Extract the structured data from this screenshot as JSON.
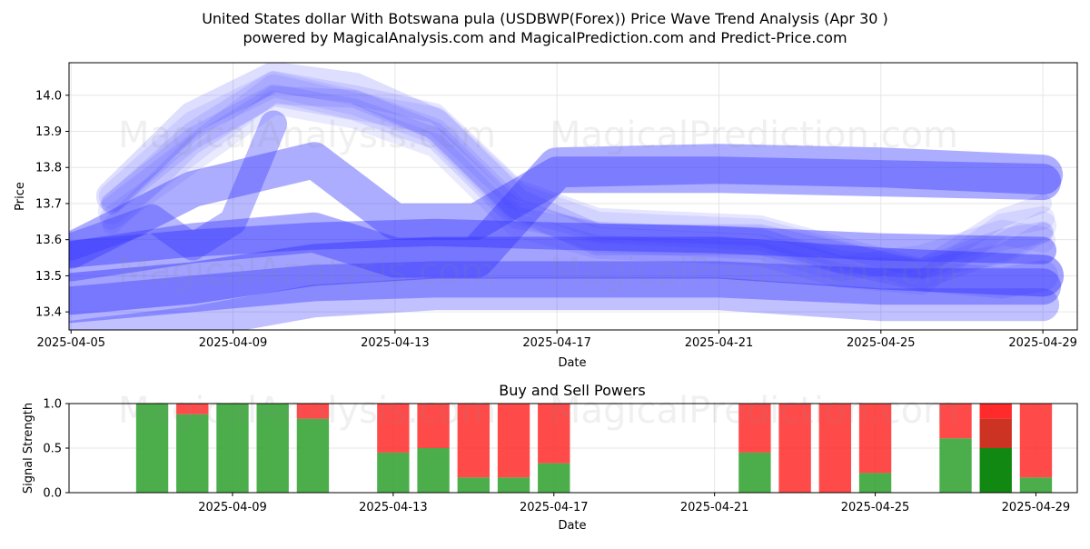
{
  "title_line1": "United States dollar With Botswana pula (USDBWP(Forex)) Price Wave Trend Analysis (Apr 30 )",
  "title_line2": "powered by MagicalAnalysis.com and MagicalPrediction.com and Predict-Price.com",
  "watermarks": [
    "MagicalAnalysis.com",
    "MagicalPrediction.com"
  ],
  "colors": {
    "wave": "#3333ff",
    "buy": "#2ca02c",
    "sell": "#ff2a2a",
    "buy_strong": "#118811",
    "sell_strong": "#cc3322"
  },
  "chart_data": [
    {
      "type": "line",
      "title": "",
      "xlabel": "Date",
      "ylabel": "Price",
      "x_ticks": [
        "2025-04-05",
        "2025-04-09",
        "2025-04-13",
        "2025-04-17",
        "2025-04-21",
        "2025-04-25",
        "2025-04-29"
      ],
      "y_ticks": [
        13.4,
        13.5,
        13.6,
        13.7,
        13.8,
        13.9,
        14.0
      ],
      "xlim": [
        "2025-04-05",
        "2025-04-30"
      ],
      "ylim": [
        13.35,
        14.09
      ],
      "grid": true,
      "series": [
        {
          "points": [
            [
              "2025-04-06",
              13.72
            ],
            [
              "2025-04-08",
              13.92
            ],
            [
              "2025-04-10",
              14.03
            ],
            [
              "2025-04-12",
              13.98
            ],
            [
              "2025-04-14",
              13.9
            ],
            [
              "2025-04-16",
              13.68
            ],
            [
              "2025-04-18",
              13.6
            ],
            [
              "2025-04-22",
              13.58
            ],
            [
              "2025-04-24",
              13.52
            ],
            [
              "2025-04-26",
              13.55
            ],
            [
              "2025-04-28",
              13.62
            ],
            [
              "2025-04-29",
              13.6
            ]
          ]
        },
        {
          "points": [
            [
              "2025-04-06",
              13.7
            ],
            [
              "2025-04-08",
              13.88
            ],
            [
              "2025-04-10",
              14.0
            ],
            [
              "2025-04-12",
              13.96
            ],
            [
              "2025-04-14",
              13.88
            ],
            [
              "2025-04-16",
              13.66
            ],
            [
              "2025-04-18",
              13.62
            ],
            [
              "2025-04-22",
              13.6
            ],
            [
              "2025-04-24",
              13.54
            ],
            [
              "2025-04-26",
              13.52
            ],
            [
              "2025-04-28",
              13.6
            ],
            [
              "2025-04-29",
              13.62
            ]
          ]
        },
        {
          "points": [
            [
              "2025-04-06",
              13.68
            ],
            [
              "2025-04-08",
              13.85
            ],
            [
              "2025-04-10",
              14.02
            ],
            [
              "2025-04-12",
              13.97
            ],
            [
              "2025-04-14",
              13.93
            ],
            [
              "2025-04-16",
              13.72
            ],
            [
              "2025-04-18",
              13.64
            ],
            [
              "2025-04-22",
              13.62
            ],
            [
              "2025-04-24",
              13.56
            ],
            [
              "2025-04-26",
              13.5
            ],
            [
              "2025-04-28",
              13.58
            ],
            [
              "2025-04-29",
              13.64
            ]
          ]
        },
        {
          "points": [
            [
              "2025-04-06",
              13.7
            ],
            [
              "2025-04-08",
              13.9
            ],
            [
              "2025-04-10",
              14.04
            ],
            [
              "2025-04-12",
              14.0
            ],
            [
              "2025-04-14",
              13.95
            ],
            [
              "2025-04-16",
              13.74
            ],
            [
              "2025-04-18",
              13.66
            ],
            [
              "2025-04-22",
              13.64
            ],
            [
              "2025-04-24",
              13.58
            ],
            [
              "2025-04-26",
              13.52
            ],
            [
              "2025-04-28",
              13.56
            ],
            [
              "2025-04-29",
              13.62
            ]
          ]
        },
        {
          "points": [
            [
              "2025-04-06",
              13.66
            ],
            [
              "2025-04-08",
              13.82
            ],
            [
              "2025-04-10",
              13.98
            ],
            [
              "2025-04-12",
              13.94
            ],
            [
              "2025-04-14",
              13.86
            ],
            [
              "2025-04-16",
              13.64
            ],
            [
              "2025-04-18",
              13.58
            ],
            [
              "2025-04-22",
              13.56
            ],
            [
              "2025-04-24",
              13.5
            ],
            [
              "2025-04-26",
              13.48
            ],
            [
              "2025-04-28",
              13.64
            ],
            [
              "2025-04-29",
              13.66
            ]
          ]
        },
        {
          "points": [
            [
              "2025-04-06",
              13.72
            ],
            [
              "2025-04-08",
              13.94
            ],
            [
              "2025-04-10",
              14.05
            ],
            [
              "2025-04-12",
              14.02
            ],
            [
              "2025-04-14",
              13.92
            ],
            [
              "2025-04-16",
              13.7
            ],
            [
              "2025-04-18",
              13.6
            ],
            [
              "2025-04-22",
              13.6
            ],
            [
              "2025-04-24",
              13.55
            ],
            [
              "2025-04-26",
              13.5
            ],
            [
              "2025-04-28",
              13.48
            ],
            [
              "2025-04-29",
              13.5
            ]
          ]
        },
        {
          "points": [
            [
              "2025-04-06",
              13.64
            ],
            [
              "2025-04-08",
              13.86
            ],
            [
              "2025-04-10",
              14.0
            ],
            [
              "2025-04-12",
              13.99
            ],
            [
              "2025-04-14",
              13.9
            ],
            [
              "2025-04-16",
              13.68
            ],
            [
              "2025-04-18",
              13.62
            ],
            [
              "2025-04-22",
              13.61
            ],
            [
              "2025-04-24",
              13.53
            ],
            [
              "2025-04-26",
              13.52
            ],
            [
              "2025-04-28",
              13.66
            ],
            [
              "2025-04-29",
              13.7
            ]
          ]
        },
        {
          "points": [
            [
              "2025-04-05",
              13.58
            ],
            [
              "2025-04-06",
              13.62
            ],
            [
              "2025-04-07",
              13.66
            ],
            [
              "2025-04-08",
              13.58
            ],
            [
              "2025-04-09",
              13.65
            ],
            [
              "2025-04-10",
              13.92
            ]
          ]
        },
        {
          "points": [
            [
              "2025-04-05",
              13.57
            ],
            [
              "2025-04-08",
              13.74
            ],
            [
              "2025-04-11",
              13.82
            ],
            [
              "2025-04-13",
              13.65
            ],
            [
              "2025-04-15",
              13.65
            ],
            [
              "2025-04-17",
              13.78
            ],
            [
              "2025-04-21",
              13.78
            ],
            [
              "2025-04-25",
              13.77
            ],
            [
              "2025-04-29",
              13.76
            ]
          ]
        },
        {
          "points": [
            [
              "2025-04-05",
              13.54
            ],
            [
              "2025-04-08",
              13.59
            ],
            [
              "2025-04-11",
              13.62
            ],
            [
              "2025-04-13",
              13.55
            ],
            [
              "2025-04-15",
              13.55
            ],
            [
              "2025-04-17",
              13.8
            ],
            [
              "2025-04-21",
              13.81
            ],
            [
              "2025-04-25",
              13.8
            ],
            [
              "2025-04-29",
              13.78
            ]
          ]
        },
        {
          "points": [
            [
              "2025-04-05",
              13.56
            ],
            [
              "2025-04-08",
              13.59
            ],
            [
              "2025-04-11",
              13.61
            ],
            [
              "2025-04-14",
              13.62
            ],
            [
              "2025-04-17",
              13.61
            ],
            [
              "2025-04-21",
              13.6
            ],
            [
              "2025-04-25",
              13.58
            ],
            [
              "2025-04-29",
              13.57
            ]
          ]
        },
        {
          "points": [
            [
              "2025-04-05",
              13.45
            ],
            [
              "2025-04-08",
              13.48
            ],
            [
              "2025-04-11",
              13.53
            ],
            [
              "2025-04-14",
              13.55
            ],
            [
              "2025-04-17",
              13.55
            ],
            [
              "2025-04-21",
              13.55
            ],
            [
              "2025-04-25",
              13.52
            ],
            [
              "2025-04-29",
              13.5
            ]
          ]
        },
        {
          "points": [
            [
              "2025-04-05",
              13.42
            ],
            [
              "2025-04-08",
              13.45
            ],
            [
              "2025-04-11",
              13.48
            ],
            [
              "2025-04-14",
              13.49
            ],
            [
              "2025-04-17",
              13.49
            ],
            [
              "2025-04-21",
              13.49
            ],
            [
              "2025-04-25",
              13.47
            ],
            [
              "2025-04-29",
              13.47
            ]
          ]
        },
        {
          "points": [
            [
              "2025-04-05",
              13.33
            ],
            [
              "2025-04-08",
              13.37
            ],
            [
              "2025-04-11",
              13.43
            ],
            [
              "2025-04-14",
              13.45
            ],
            [
              "2025-04-17",
              13.45
            ],
            [
              "2025-04-21",
              13.45
            ],
            [
              "2025-04-25",
              13.42
            ],
            [
              "2025-04-29",
              13.42
            ]
          ]
        }
      ]
    },
    {
      "type": "bar",
      "title": "Buy and Sell Powers",
      "xlabel": "Date",
      "ylabel": "Signal Strength",
      "ylim": [
        0,
        1
      ],
      "y_ticks": [
        "0.0",
        "0.5",
        "1.0"
      ],
      "x_ticks": [
        "2025-04-09",
        "2025-04-13",
        "2025-04-17",
        "2025-04-21",
        "2025-04-25",
        "2025-04-29"
      ],
      "xlim": [
        "2025-04-05",
        "2025-04-30"
      ],
      "grid": true,
      "bars": [
        {
          "date": "2025-04-07",
          "buy": 1.0,
          "sell": 0.0
        },
        {
          "date": "2025-04-08",
          "buy": 0.88,
          "sell": 0.12
        },
        {
          "date": "2025-04-09",
          "buy": 1.0,
          "sell": 0.0
        },
        {
          "date": "2025-04-10",
          "buy": 1.0,
          "sell": 0.0
        },
        {
          "date": "2025-04-11",
          "buy": 0.83,
          "sell": 0.17
        },
        {
          "date": "2025-04-13",
          "buy": 0.45,
          "sell": 0.55
        },
        {
          "date": "2025-04-14",
          "buy": 0.5,
          "sell": 0.5
        },
        {
          "date": "2025-04-15",
          "buy": 0.17,
          "sell": 0.83
        },
        {
          "date": "2025-04-16",
          "buy": 0.17,
          "sell": 0.83
        },
        {
          "date": "2025-04-17",
          "buy": 0.33,
          "sell": 0.67
        },
        {
          "date": "2025-04-22",
          "buy": 0.45,
          "sell": 0.55
        },
        {
          "date": "2025-04-23",
          "buy": 0.0,
          "sell": 1.0
        },
        {
          "date": "2025-04-24",
          "buy": 0.0,
          "sell": 1.0
        },
        {
          "date": "2025-04-25",
          "buy": 0.22,
          "sell": 0.78
        },
        {
          "date": "2025-04-27",
          "buy": 0.61,
          "sell": 0.39
        },
        {
          "date": "2025-04-28",
          "buy": 0.5,
          "sell": 0.5,
          "strong": true
        },
        {
          "date": "2025-04-29",
          "buy": 0.17,
          "sell": 0.83
        }
      ]
    }
  ]
}
